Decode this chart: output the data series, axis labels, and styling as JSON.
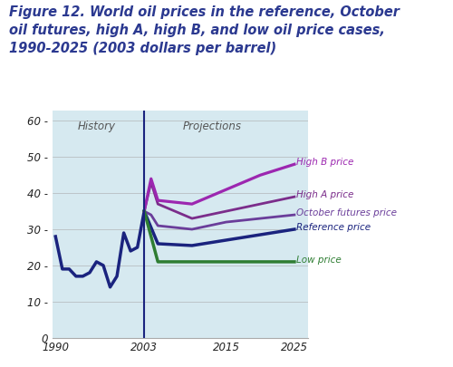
{
  "title_line1": "Figure 12. World oil prices in the reference, October",
  "title_line2": "oil futures, high A, high B, and low oil price cases,",
  "title_line3": "1990-2025 (2003 dollars per barrel)",
  "title_color": "#2b3990",
  "background_color": "#d6e9f0",
  "fig_bg_color": "#ffffff",
  "history_label": "History",
  "projections_label": "Projections",
  "divider_year": 2003,
  "xlim": [
    1989.5,
    2027
  ],
  "ylim": [
    0,
    63
  ],
  "yticks": [
    0,
    10,
    20,
    30,
    40,
    50,
    60
  ],
  "xticks": [
    1990,
    2003,
    2015,
    2025
  ],
  "history_years": [
    1990,
    1991,
    1992,
    1993,
    1994,
    1995,
    1996,
    1997,
    1998,
    1999,
    2000,
    2001,
    2002,
    2003
  ],
  "history_values": [
    28,
    19,
    19,
    17,
    17,
    18,
    21,
    20,
    14,
    17,
    29,
    24,
    25,
    35
  ],
  "ref_years": [
    2003,
    2005,
    2010,
    2015,
    2020,
    2025
  ],
  "ref_values": [
    35,
    26,
    25.5,
    27,
    28.5,
    30
  ],
  "ref_color": "#1a237e",
  "ref_label": "Reference price",
  "oct_years": [
    2003,
    2004,
    2005,
    2010,
    2015,
    2020,
    2025
  ],
  "oct_values": [
    35,
    34,
    31,
    30,
    32,
    33,
    34
  ],
  "oct_color": "#6a3d9a",
  "oct_label": "October futures price",
  "ha_years": [
    2003,
    2004,
    2005,
    2010,
    2015,
    2020,
    2025
  ],
  "ha_values": [
    35,
    43,
    37,
    33,
    35,
    37,
    39
  ],
  "ha_color": "#7b2d8b",
  "ha_label": "High A price",
  "hb_years": [
    2003,
    2004,
    2005,
    2010,
    2015,
    2020,
    2025
  ],
  "hb_values": [
    35,
    44,
    38,
    37,
    41,
    45,
    48
  ],
  "hb_color": "#9c27b0",
  "hb_label": "High B price",
  "low_years": [
    2003,
    2004,
    2005,
    2010,
    2015,
    2020,
    2025
  ],
  "low_values": [
    35,
    28,
    21,
    21,
    21,
    21,
    21
  ],
  "low_color": "#2e7d32",
  "low_label": "Low price",
  "hist_color": "#1a237e",
  "linewidth": 2.0,
  "label_fontsize": 7.5,
  "tick_fontsize": 8.5,
  "title_fontsize": 10.5
}
